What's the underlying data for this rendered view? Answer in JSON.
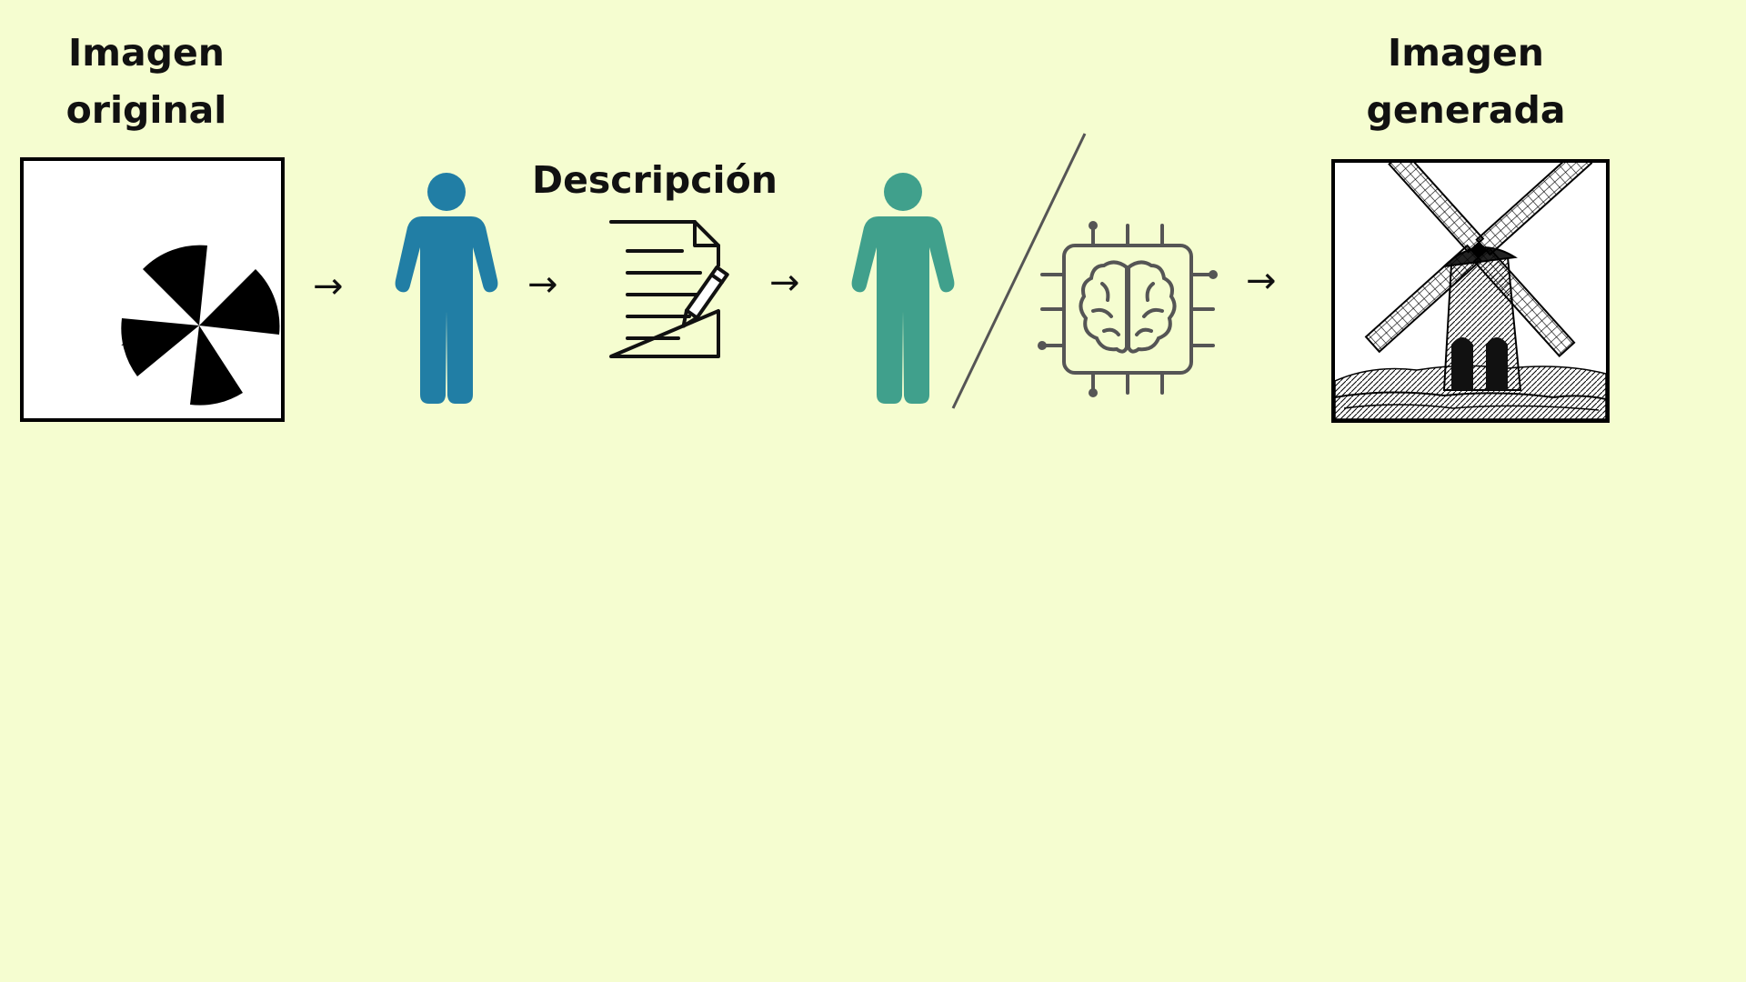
{
  "diagram": {
    "original_title": "Imagen\noriginal",
    "generated_title": "Imagen\ngenerada",
    "description_label": "Descripción",
    "arrows": [
      "→",
      "→",
      "→",
      "→"
    ],
    "colors": {
      "background": "#f5fdd0",
      "person_describer": "#217ea5",
      "person_generator": "#40a08c",
      "ai_icon": "#555555",
      "ink": "#111111"
    },
    "icons": {
      "original_image": "pinwheel-tangram-shape",
      "describer": "person-icon",
      "description": "document-with-pencil-icon",
      "generator_human": "person-icon",
      "generator_ai": "ai-brain-chip-icon",
      "generated_image": "windmill-engraving"
    }
  }
}
